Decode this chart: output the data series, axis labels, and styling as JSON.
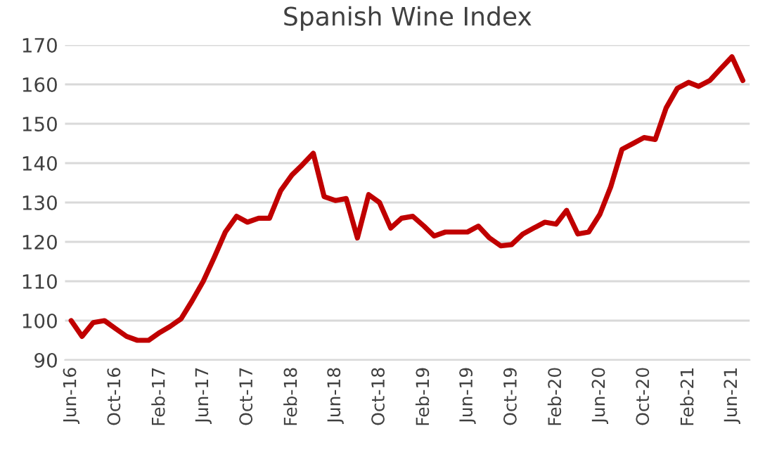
{
  "chart_data": {
    "type": "line",
    "title": "Spanish Wine Index",
    "x": [
      "2016-06",
      "2016-07",
      "2016-08",
      "2016-09",
      "2016-10",
      "2016-11",
      "2016-12",
      "2017-01",
      "2017-02",
      "2017-03",
      "2017-04",
      "2017-05",
      "2017-06",
      "2017-07",
      "2017-08",
      "2017-09",
      "2017-10",
      "2017-11",
      "2017-12",
      "2018-01",
      "2018-02",
      "2018-03",
      "2018-04",
      "2018-05",
      "2018-06",
      "2018-07",
      "2018-08",
      "2018-09",
      "2018-10",
      "2018-11",
      "2018-12",
      "2019-01",
      "2019-02",
      "2019-03",
      "2019-04",
      "2019-05",
      "2019-06",
      "2019-07",
      "2019-08",
      "2019-09",
      "2019-10",
      "2019-11",
      "2019-12",
      "2020-01",
      "2020-02",
      "2020-03",
      "2020-04",
      "2020-05",
      "2020-06",
      "2020-07",
      "2020-08",
      "2020-09",
      "2020-10",
      "2020-11",
      "2020-12",
      "2021-01",
      "2021-02",
      "2021-03",
      "2021-04",
      "2021-05",
      "2021-06",
      "2021-07"
    ],
    "series": [
      {
        "color": "#c00000",
        "values": [
          100,
          96,
          99.5,
          100,
          98,
          96,
          95,
          95,
          97,
          98.5,
          100.5,
          105,
          110,
          116,
          122.5,
          126.5,
          125,
          126,
          126,
          133,
          137,
          139.5,
          142.5,
          131.5,
          130.5,
          131,
          121,
          132,
          130,
          123.5,
          126,
          126.5,
          124,
          121.5,
          122.5,
          122.5,
          122.5,
          124,
          121,
          119,
          119.3,
          122,
          123.5,
          125,
          124.5,
          128,
          122,
          122.5,
          127,
          134,
          143.5,
          145,
          146.5,
          146,
          154,
          159,
          160.5,
          159.5,
          161,
          164,
          167,
          161
        ]
      }
    ],
    "xlim": [
      "2016-05-15",
      "2021-07-20"
    ],
    "xticks": [
      {
        "value": "2016-06",
        "label": "Jun-16"
      },
      {
        "value": "2016-10",
        "label": "Oct-16"
      },
      {
        "value": "2017-02",
        "label": "Feb-17"
      },
      {
        "value": "2017-06",
        "label": "Jun-17"
      },
      {
        "value": "2017-10",
        "label": "Oct-17"
      },
      {
        "value": "2018-02",
        "label": "Feb-18"
      },
      {
        "value": "2018-06",
        "label": "Jun-18"
      },
      {
        "value": "2018-10",
        "label": "Oct-18"
      },
      {
        "value": "2019-02",
        "label": "Feb-19"
      },
      {
        "value": "2019-06",
        "label": "Jun-19"
      },
      {
        "value": "2019-10",
        "label": "Oct-19"
      },
      {
        "value": "2020-02",
        "label": "Feb-20"
      },
      {
        "value": "2020-06",
        "label": "Jun-20"
      },
      {
        "value": "2020-10",
        "label": "Oct-20"
      },
      {
        "value": "2021-02",
        "label": "Feb-21"
      },
      {
        "value": "2021-06",
        "label": "Jun-21"
      }
    ],
    "ylim": [
      90,
      170
    ],
    "yticks": [
      90,
      100,
      110,
      120,
      130,
      140,
      150,
      160,
      170
    ],
    "grid": "y",
    "legend": false,
    "marker": "none",
    "line_style": "solid"
  }
}
